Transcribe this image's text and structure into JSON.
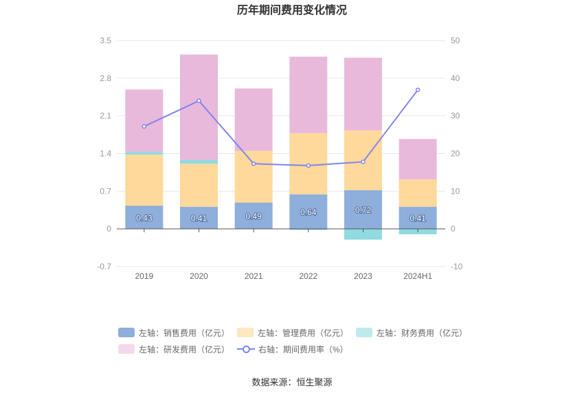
{
  "chart_data": {
    "type": "bar",
    "title": "历年期间费用变化情况",
    "categories": [
      "2019",
      "2020",
      "2021",
      "2022",
      "2023",
      "2024H1"
    ],
    "left_axis": {
      "min": -0.7,
      "max": 3.5,
      "ticks": [
        "-0.7",
        "0",
        "0.7",
        "1.4",
        "2.1",
        "2.8",
        "3.5"
      ]
    },
    "right_axis": {
      "min": -10,
      "max": 50,
      "ticks": [
        "-10",
        "0",
        "10",
        "20",
        "30",
        "40",
        "50"
      ]
    },
    "stacked": true,
    "series": [
      {
        "name": "左轴：销售费用（亿元）",
        "type": "bar",
        "axis": "left",
        "color": "#8eaedb",
        "values": [
          0.43,
          0.41,
          0.49,
          0.64,
          0.72,
          0.41
        ],
        "labels": [
          "0.43",
          "0.41",
          "0.49",
          "0.64",
          "0.72",
          "0.41"
        ]
      },
      {
        "name": "左轴：管理费用（亿元）",
        "type": "bar",
        "axis": "left",
        "color": "#fed99b",
        "values": [
          0.95,
          0.8,
          0.96,
          1.14,
          1.11,
          0.51
        ]
      },
      {
        "name": "左轴：财务费用（亿元）",
        "type": "bar",
        "axis": "left",
        "color": "#8fdbdf",
        "values": [
          0.05,
          0.07,
          0.0,
          -0.02,
          -0.2,
          -0.1
        ]
      },
      {
        "name": "左轴：研发费用（亿元）",
        "type": "bar",
        "axis": "left",
        "color": "#e8b9db",
        "values": [
          1.16,
          1.96,
          1.16,
          1.42,
          1.35,
          0.75
        ]
      },
      {
        "name": "右轴：期间费用率（%）",
        "type": "line",
        "axis": "right",
        "color": "#7e84ee",
        "values": [
          27.2,
          34.0,
          17.3,
          16.8,
          17.8,
          36.9
        ]
      }
    ],
    "grid": true,
    "legend_position": "bottom"
  },
  "legend": {
    "row1": [
      "左轴：销售费用（亿元）",
      "左轴：管理费用（亿元）",
      "左轴：财务费用（亿元）"
    ],
    "row2": [
      "左轴：研发费用（亿元）",
      "右轴：期间费用率（%）"
    ]
  },
  "source": "数据来源：恒生聚源"
}
